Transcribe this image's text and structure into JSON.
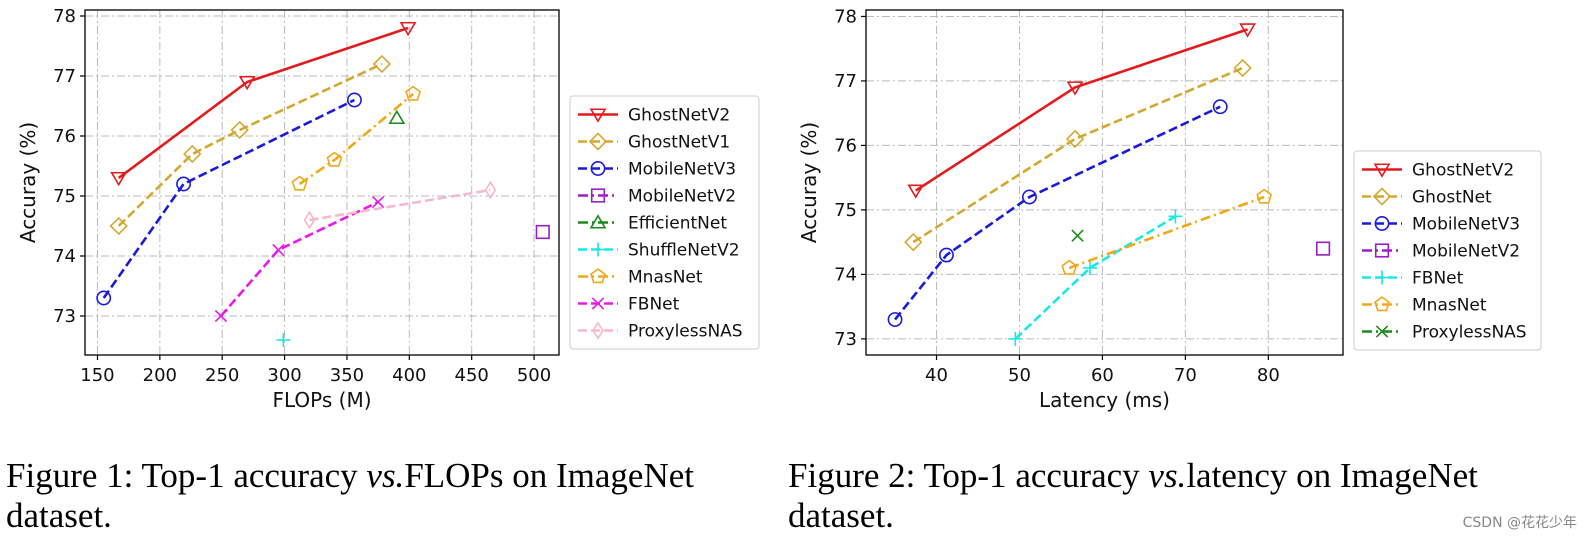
{
  "chart_data": [
    {
      "type": "line",
      "xlabel": "FLOPs (M)",
      "ylabel": "Accuray (%)",
      "xlim": [
        140,
        520
      ],
      "ylim": [
        72.35,
        78.1
      ],
      "xticks": [
        150,
        200,
        250,
        300,
        350,
        400,
        450,
        500
      ],
      "yticks": [
        73,
        74,
        75,
        76,
        77,
        78
      ],
      "grid": true,
      "legend": "right",
      "series": [
        {
          "name": "GhostNetV2",
          "color": "#e41a1c",
          "style": "solid",
          "marker": "tri-down",
          "x": [
            167,
            270,
            399
          ],
          "y": [
            75.3,
            76.9,
            77.8
          ]
        },
        {
          "name": "GhostNetV1",
          "color": "#d4a830",
          "style": "dash",
          "marker": "diamond",
          "x": [
            167,
            226,
            264,
            378
          ],
          "y": [
            74.5,
            75.7,
            76.1,
            77.2
          ]
        },
        {
          "name": "MobileNetV3",
          "color": "#1a1adc",
          "style": "dash",
          "marker": "circle",
          "x": [
            155,
            219,
            356
          ],
          "y": [
            73.3,
            75.2,
            76.6
          ]
        },
        {
          "name": "MobileNetV2",
          "color": "#9a1fc8",
          "style": "dashdot",
          "marker": "square",
          "x": [
            507
          ],
          "y": [
            74.4
          ]
        },
        {
          "name": "EfficientNet",
          "color": "#1a8a1a",
          "style": "dashdot",
          "marker": "tri-up",
          "x": [
            390
          ],
          "y": [
            76.3
          ]
        },
        {
          "name": "ShuffleNetV2",
          "color": "#19e8e8",
          "style": "dash",
          "marker": "plus",
          "x": [
            299
          ],
          "y": [
            72.6
          ]
        },
        {
          "name": "MnasNet",
          "color": "#f0a818",
          "style": "dashdot",
          "marker": "pentagon",
          "x": [
            312,
            340,
            403
          ],
          "y": [
            75.2,
            75.6,
            76.7
          ]
        },
        {
          "name": "FBNet",
          "color": "#e81ae8",
          "style": "dash",
          "marker": "x",
          "x": [
            249,
            295,
            375
          ],
          "y": [
            73.0,
            74.1,
            74.9
          ]
        },
        {
          "name": "ProxylessNAS",
          "color": "#f7b8c8",
          "style": "dash",
          "marker": "thin-diamond",
          "x": [
            320,
            465
          ],
          "y": [
            74.6,
            75.1
          ]
        }
      ]
    },
    {
      "type": "line",
      "xlabel": "Latency (ms)",
      "ylabel": "Accuray (%)",
      "xlim": [
        31.5,
        89
      ],
      "ylim": [
        72.75,
        78.1
      ],
      "xticks": [
        40,
        50,
        60,
        70,
        80
      ],
      "yticks": [
        73,
        74,
        75,
        76,
        77,
        78
      ],
      "grid": true,
      "legend": "right",
      "series": [
        {
          "name": "GhostNetV2",
          "color": "#e41a1c",
          "style": "solid",
          "marker": "tri-down",
          "x": [
            37.5,
            56.7,
            77.5
          ],
          "y": [
            75.3,
            76.9,
            77.8
          ]
        },
        {
          "name": "GhostNet",
          "color": "#d4a830",
          "style": "dash",
          "marker": "diamond",
          "x": [
            37.2,
            56.7,
            76.9
          ],
          "y": [
            74.5,
            76.1,
            77.2
          ]
        },
        {
          "name": "MobileNetV3",
          "color": "#1a1adc",
          "style": "dash",
          "marker": "circle",
          "x": [
            35,
            41.2,
            51.2,
            74.2
          ],
          "y": [
            73.3,
            74.3,
            75.2,
            76.6
          ]
        },
        {
          "name": "MobileNetV2",
          "color": "#9a1fc8",
          "style": "dashdot",
          "marker": "square",
          "x": [
            86.6
          ],
          "y": [
            74.4
          ]
        },
        {
          "name": "FBNet",
          "color": "#19e8e8",
          "style": "dash",
          "marker": "plus",
          "x": [
            49.5,
            58.5,
            68.8
          ],
          "y": [
            73.0,
            74.1,
            74.9
          ]
        },
        {
          "name": "MnasNet",
          "color": "#f0a818",
          "style": "dashdot",
          "marker": "pentagon",
          "x": [
            56,
            79.5
          ],
          "y": [
            74.1,
            75.2
          ]
        },
        {
          "name": "ProxylessNAS",
          "color": "#1a8a1a",
          "style": "dashdot",
          "marker": "x",
          "x": [
            57
          ],
          "y": [
            74.6
          ]
        }
      ]
    }
  ],
  "captions": [
    {
      "label": "Figure 1:",
      "pre": "Top-1 accuracy",
      "vs": "vs.",
      "post": "FLOPs on ImageNet",
      "line2": "dataset."
    },
    {
      "label": "Figure 2:",
      "pre": "Top-1 accuracy",
      "vs": "vs.",
      "post": "latency on ImageNet",
      "line2": "dataset."
    }
  ],
  "watermark": "CSDN @花花少年"
}
